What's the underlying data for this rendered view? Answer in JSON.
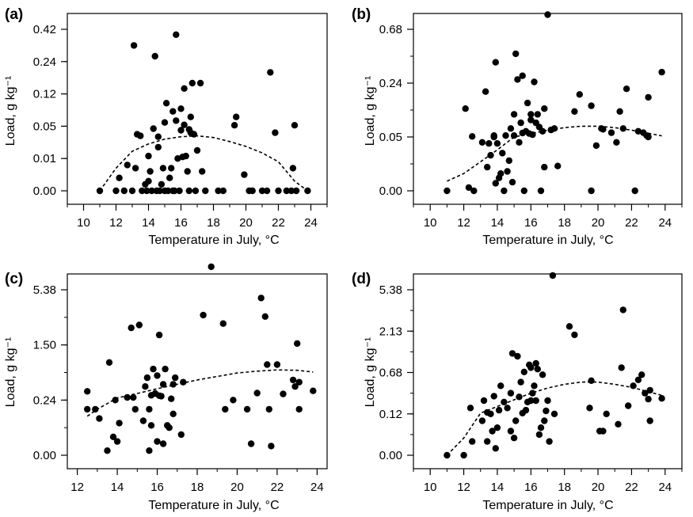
{
  "chart_data": [
    {
      "type": "scatter",
      "panel_label": "(a)",
      "xlabel": "Temperature in July, °C",
      "ylabel": "Load, g kg⁻¹",
      "xlim": [
        9,
        25
      ],
      "x_ticks": [
        10,
        12,
        14,
        16,
        18,
        20,
        22,
        24
      ],
      "y_ticks": [
        "0.00",
        "0.01",
        "0.05",
        "0.12",
        "0.24",
        "0.42"
      ],
      "y_ticks_minor": 6,
      "trend": "quadratic fit (dashed)",
      "trend_points": [
        [
          11,
          0.0
        ],
        [
          12,
          0.007
        ],
        [
          13,
          0.019
        ],
        [
          14,
          0.028
        ],
        [
          15,
          0.034
        ],
        [
          16,
          0.037
        ],
        [
          17,
          0.038
        ],
        [
          18,
          0.036
        ],
        [
          19,
          0.031
        ],
        [
          20,
          0.025
        ],
        [
          21,
          0.017
        ],
        [
          22,
          0.009
        ],
        [
          23,
          0.003
        ],
        [
          23.8,
          0.0
        ]
      ],
      "points": [
        [
          11,
          0.0
        ],
        [
          12,
          0.0
        ],
        [
          12.2,
          0.004
        ],
        [
          12.5,
          0.0
        ],
        [
          12.7,
          0.008
        ],
        [
          13,
          0.0
        ],
        [
          13.1,
          0.33
        ],
        [
          13.2,
          0.007
        ],
        [
          13.3,
          0.04
        ],
        [
          13.5,
          0.038
        ],
        [
          13.6,
          0.0
        ],
        [
          13.8,
          0.002
        ],
        [
          13.9,
          0.0
        ],
        [
          14,
          0.013
        ],
        [
          14,
          0.003
        ],
        [
          14.1,
          0.006
        ],
        [
          14.2,
          0.0
        ],
        [
          14.3,
          0.047
        ],
        [
          14.4,
          0.27
        ],
        [
          14.5,
          0.0
        ],
        [
          14.6,
          0.037
        ],
        [
          14.6,
          0.024
        ],
        [
          14.7,
          0.0
        ],
        [
          14.8,
          0.002
        ],
        [
          14.9,
          0.007
        ],
        [
          15,
          0.058
        ],
        [
          15,
          0.0
        ],
        [
          15.1,
          0.1
        ],
        [
          15.2,
          0.0
        ],
        [
          15.3,
          0.004
        ],
        [
          15.4,
          0.007
        ],
        [
          15.5,
          0.0
        ],
        [
          15.5,
          0.082
        ],
        [
          15.6,
          0.0
        ],
        [
          15.7,
          0.39
        ],
        [
          15.7,
          0.062
        ],
        [
          15.8,
          0.01
        ],
        [
          15.9,
          0.0
        ],
        [
          16,
          0.045
        ],
        [
          16,
          0.088
        ],
        [
          16.1,
          0.012
        ],
        [
          16.2,
          0.14
        ],
        [
          16.2,
          0.053
        ],
        [
          16.3,
          0.013
        ],
        [
          16.4,
          0.006
        ],
        [
          16.5,
          0.0
        ],
        [
          16.5,
          0.046
        ],
        [
          16.6,
          0.07
        ],
        [
          16.6,
          0.042
        ],
        [
          16.7,
          0.16
        ],
        [
          16.8,
          0.04
        ],
        [
          16.9,
          0.0
        ],
        [
          17,
          0.02
        ],
        [
          17.2,
          0.16
        ],
        [
          17.3,
          0.006
        ],
        [
          17.5,
          0.0
        ],
        [
          18.3,
          0.0
        ],
        [
          18.6,
          0.0
        ],
        [
          19.3,
          0.052
        ],
        [
          19.4,
          0.07
        ],
        [
          19.9,
          0.005
        ],
        [
          20.2,
          0.0
        ],
        [
          20.4,
          0.0
        ],
        [
          21,
          0.0
        ],
        [
          21.3,
          0.0
        ],
        [
          21.5,
          0.2
        ],
        [
          21.8,
          0.042
        ],
        [
          22,
          0.0
        ],
        [
          22.5,
          0.0
        ],
        [
          22.8,
          0.0
        ],
        [
          22.9,
          0.007
        ],
        [
          23,
          0.052
        ],
        [
          23.1,
          0.0
        ],
        [
          23.8,
          0.0
        ]
      ]
    },
    {
      "type": "scatter",
      "panel_label": "(b)",
      "xlabel": "Temperature in July, °C",
      "ylabel": "Load, g kg⁻¹",
      "xlim": [
        9,
        25
      ],
      "x_ticks": [
        10,
        12,
        14,
        16,
        18,
        20,
        22,
        24
      ],
      "y_ticks": [
        "0.00",
        "0.05",
        "0.24",
        "0.68"
      ],
      "y_ticks_minor": 7,
      "trend": "quadratic fit (dashed)",
      "trend_points": [
        [
          11,
          0.009
        ],
        [
          12,
          0.016
        ],
        [
          13,
          0.027
        ],
        [
          14,
          0.038
        ],
        [
          15,
          0.05
        ],
        [
          16,
          0.062
        ],
        [
          17,
          0.074
        ],
        [
          18,
          0.083
        ],
        [
          19,
          0.088
        ],
        [
          20,
          0.088
        ],
        [
          21,
          0.083
        ],
        [
          22,
          0.074
        ],
        [
          23,
          0.063
        ],
        [
          23.8,
          0.054
        ]
      ],
      "points": [
        [
          11,
          0.0
        ],
        [
          12.1,
          0.15
        ],
        [
          12.3,
          0.003
        ],
        [
          12.5,
          0.052
        ],
        [
          12.6,
          0.0
        ],
        [
          13.1,
          0.045
        ],
        [
          13.3,
          0.21
        ],
        [
          13.4,
          0.022
        ],
        [
          13.5,
          0.044
        ],
        [
          13.6,
          0.033
        ],
        [
          13.8,
          0.055
        ],
        [
          13.8,
          0.05
        ],
        [
          13.9,
          0.41
        ],
        [
          13.9,
          0.007
        ],
        [
          14,
          0.044
        ],
        [
          14.1,
          0.012
        ],
        [
          14.2,
          0.016
        ],
        [
          14.3,
          0.035
        ],
        [
          14.4,
          0.0
        ],
        [
          14.5,
          0.055
        ],
        [
          14.6,
          0.018
        ],
        [
          14.7,
          0.028
        ],
        [
          14.8,
          0.08
        ],
        [
          14.9,
          0.008
        ],
        [
          15,
          0.13
        ],
        [
          15,
          0.055
        ],
        [
          15.1,
          0.48
        ],
        [
          15.2,
          0.27
        ],
        [
          15.3,
          0.045
        ],
        [
          15.4,
          0.1
        ],
        [
          15.5,
          0.3
        ],
        [
          15.5,
          0.064
        ],
        [
          15.6,
          0.0
        ],
        [
          15.7,
          0.07
        ],
        [
          15.8,
          0.17
        ],
        [
          15.9,
          0.062
        ],
        [
          16,
          0.11
        ],
        [
          16,
          0.13
        ],
        [
          16.1,
          0.058
        ],
        [
          16.2,
          0.25
        ],
        [
          16.3,
          0.1
        ],
        [
          16.4,
          0.13
        ],
        [
          16.5,
          0.085
        ],
        [
          16.6,
          0.0
        ],
        [
          16.7,
          0.07
        ],
        [
          16.8,
          0.15
        ],
        [
          16.8,
          0.022
        ],
        [
          17,
          0.8
        ],
        [
          17.2,
          0.075
        ],
        [
          17.4,
          0.08
        ],
        [
          17.6,
          0.023
        ],
        [
          18.6,
          0.14
        ],
        [
          18.9,
          0.2
        ],
        [
          19.6,
          0.0
        ],
        [
          19.6,
          0.16
        ],
        [
          19.9,
          0.042
        ],
        [
          20.2,
          0.08
        ],
        [
          20.3,
          0.077
        ],
        [
          20.8,
          0.065
        ],
        [
          21.1,
          0.045
        ],
        [
          21.3,
          0.14
        ],
        [
          21.5,
          0.08
        ],
        [
          21.7,
          0.22
        ],
        [
          22.2,
          0.0
        ],
        [
          22.4,
          0.07
        ],
        [
          22.7,
          0.065
        ],
        [
          22.9,
          0.055
        ],
        [
          23,
          0.05
        ],
        [
          23,
          0.19
        ],
        [
          23.8,
          0.33
        ]
      ]
    },
    {
      "type": "scatter",
      "panel_label": "(c)",
      "xlabel": "Temperature in July, °C",
      "ylabel": "Load, g kg⁻¹",
      "xlim": [
        11.5,
        24.5
      ],
      "x_ticks": [
        12,
        14,
        16,
        18,
        20,
        22,
        24
      ],
      "y_ticks": [
        "0.00",
        "0.24",
        "1.50",
        "5.38"
      ],
      "y_ticks_minor": 7,
      "trend": "quadratic fit (dashed)",
      "trend_points": [
        [
          12.5,
          0.17
        ],
        [
          13,
          0.2
        ],
        [
          14,
          0.29
        ],
        [
          15,
          0.39
        ],
        [
          16,
          0.5
        ],
        [
          17,
          0.6
        ],
        [
          18,
          0.7
        ],
        [
          19,
          0.78
        ],
        [
          20,
          0.86
        ],
        [
          21,
          0.9
        ],
        [
          22,
          0.93
        ],
        [
          23,
          0.92
        ],
        [
          23.8,
          0.88
        ]
      ],
      "points": [
        [
          12.5,
          0.44
        ],
        [
          12.5,
          0.2
        ],
        [
          12.9,
          0.2
        ],
        [
          13.1,
          0.16
        ],
        [
          13.5,
          0.02
        ],
        [
          13.6,
          1.1
        ],
        [
          13.8,
          0.08
        ],
        [
          13.9,
          0.24
        ],
        [
          14.0,
          0.06
        ],
        [
          14.1,
          0.14
        ],
        [
          14.5,
          0.3
        ],
        [
          14.7,
          2.7
        ],
        [
          14.8,
          0.3
        ],
        [
          14.9,
          0.2
        ],
        [
          15.1,
          2.9
        ],
        [
          15.3,
          0.15
        ],
        [
          15.4,
          0.55
        ],
        [
          15.5,
          0.75
        ],
        [
          15.6,
          0.2
        ],
        [
          15.6,
          0.02
        ],
        [
          15.7,
          0.35
        ],
        [
          15.7,
          0.13
        ],
        [
          15.8,
          0.95
        ],
        [
          15.9,
          0.39
        ],
        [
          16.0,
          0.06
        ],
        [
          16.0,
          0.8
        ],
        [
          16.1,
          0.34
        ],
        [
          16.1,
          2.2
        ],
        [
          16.2,
          0.33
        ],
        [
          16.3,
          0.6
        ],
        [
          16.3,
          0.05
        ],
        [
          16.4,
          0.95
        ],
        [
          16.5,
          0.13
        ],
        [
          16.6,
          0.12
        ],
        [
          16.7,
          0.27
        ],
        [
          16.8,
          0.6
        ],
        [
          16.8,
          0.18
        ],
        [
          16.9,
          0.75
        ],
        [
          17.2,
          0.09
        ],
        [
          17.3,
          0.65
        ],
        [
          18.3,
          3.6
        ],
        [
          18.7,
          7.0
        ],
        [
          19.3,
          3.0
        ],
        [
          19.4,
          0.2
        ],
        [
          19.8,
          0.24
        ],
        [
          20.5,
          0.2
        ],
        [
          20.7,
          0.05
        ],
        [
          21.0,
          0.4
        ],
        [
          21.2,
          4.8
        ],
        [
          21.4,
          3.5
        ],
        [
          21.5,
          1.05
        ],
        [
          21.6,
          0.2
        ],
        [
          21.7,
          0.04
        ],
        [
          22.0,
          1.05
        ],
        [
          22.3,
          0.38
        ],
        [
          22.8,
          0.7
        ],
        [
          22.9,
          0.55
        ],
        [
          23.0,
          1.6
        ],
        [
          23.1,
          0.65
        ],
        [
          23.1,
          0.2
        ],
        [
          23.8,
          0.45
        ]
      ]
    },
    {
      "type": "scatter",
      "panel_label": "(d)",
      "xlabel": "Temperature in July, °C",
      "ylabel": "Load, g kg⁻¹",
      "xlim": [
        9,
        25
      ],
      "x_ticks": [
        10,
        12,
        14,
        16,
        18,
        20,
        22,
        24
      ],
      "y_ticks": [
        "0.00",
        "0.12",
        "0.68",
        "2.13",
        "5.38"
      ],
      "y_ticks_minor": 9,
      "trend": "quadratic fit (dashed)",
      "trend_points": [
        [
          11,
          0.0
        ],
        [
          12,
          0.05
        ],
        [
          13,
          0.13
        ],
        [
          14,
          0.22
        ],
        [
          15,
          0.31
        ],
        [
          16,
          0.4
        ],
        [
          17,
          0.47
        ],
        [
          18,
          0.52
        ],
        [
          19,
          0.55
        ],
        [
          20,
          0.55
        ],
        [
          21,
          0.52
        ],
        [
          22,
          0.48
        ],
        [
          23,
          0.42
        ],
        [
          23.8,
          0.37
        ]
      ],
      "points": [
        [
          11,
          0.0
        ],
        [
          12,
          0.0
        ],
        [
          12.4,
          0.2
        ],
        [
          12.5,
          0.04
        ],
        [
          13.1,
          0.1
        ],
        [
          13.2,
          0.3
        ],
        [
          13.4,
          0.14
        ],
        [
          13.4,
          0.04
        ],
        [
          13.6,
          0.12
        ],
        [
          13.7,
          0.07
        ],
        [
          13.8,
          0.36
        ],
        [
          13.9,
          0.02
        ],
        [
          14,
          0.08
        ],
        [
          14.1,
          0.17
        ],
        [
          14.2,
          0.5
        ],
        [
          14.4,
          0.28
        ],
        [
          14.6,
          0.2
        ],
        [
          14.8,
          0.07
        ],
        [
          14.8,
          0.4
        ],
        [
          14.9,
          1.35
        ],
        [
          15,
          0.05
        ],
        [
          15.1,
          0.1
        ],
        [
          15.2,
          1.25
        ],
        [
          15.3,
          0.35
        ],
        [
          15.4,
          0.55
        ],
        [
          15.5,
          0.13
        ],
        [
          15.6,
          0.7
        ],
        [
          15.7,
          0.17
        ],
        [
          15.8,
          0.28
        ],
        [
          15.9,
          0.95
        ],
        [
          16,
          0.3
        ],
        [
          16,
          0.85
        ],
        [
          16.1,
          0.4
        ],
        [
          16.2,
          0.5
        ],
        [
          16.3,
          1.0
        ],
        [
          16.3,
          0.3
        ],
        [
          16.4,
          0.8
        ],
        [
          16.5,
          0.06
        ],
        [
          16.6,
          0.08
        ],
        [
          16.7,
          0.65
        ],
        [
          16.8,
          0.1
        ],
        [
          16.9,
          0.16
        ],
        [
          17,
          0.3
        ],
        [
          17.1,
          0.04
        ],
        [
          17.4,
          0.12
        ],
        [
          17.3,
          6.5
        ],
        [
          18.3,
          2.5
        ],
        [
          18.6,
          2.0
        ],
        [
          19.5,
          0.2
        ],
        [
          19.6,
          0.57
        ],
        [
          20.1,
          0.07
        ],
        [
          20.3,
          0.07
        ],
        [
          20.5,
          0.12
        ],
        [
          21.2,
          0.09
        ],
        [
          21.4,
          0.85
        ],
        [
          21.5,
          3.8
        ],
        [
          21.8,
          0.23
        ],
        [
          22.1,
          0.5
        ],
        [
          22.4,
          0.58
        ],
        [
          22.6,
          0.65
        ],
        [
          22.8,
          0.4
        ],
        [
          23,
          0.32
        ],
        [
          23.1,
          0.1
        ],
        [
          23.1,
          0.44
        ],
        [
          23.8,
          0.33
        ]
      ]
    }
  ]
}
